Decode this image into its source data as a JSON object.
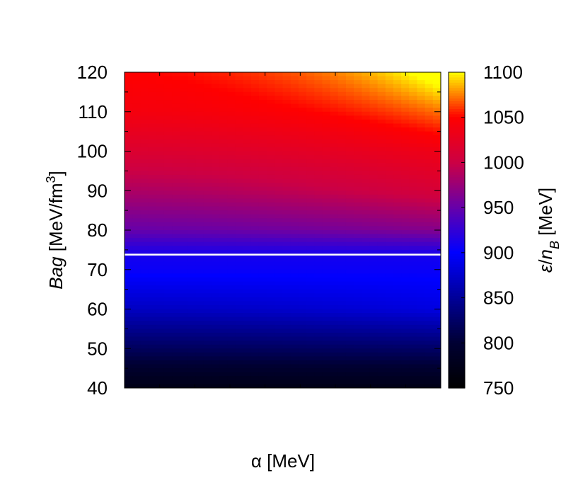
{
  "chart_data": {
    "type": "heatmap",
    "title": "",
    "xlabel": "α [MeV]",
    "ylabel": {
      "italic": "Bag",
      "text": " [MeV/fm",
      "sup": "3",
      "close": "]"
    },
    "colorbar_label": {
      "italic_a": "ε",
      "slash": "/",
      "italic_b": "n",
      "sub": "B",
      "text": " [MeV]"
    },
    "y_ticks": [
      40,
      50,
      60,
      70,
      80,
      90,
      100,
      110,
      120
    ],
    "ylim": [
      40,
      120
    ],
    "x_ticks_labeled": false,
    "colorbar_ticks": [
      750,
      800,
      850,
      900,
      950,
      1000,
      1050,
      1100
    ],
    "colorbar_range": [
      750,
      1100
    ],
    "colormap": [
      {
        "value": 750,
        "color": "#000000"
      },
      {
        "value": 800,
        "color": "#000033"
      },
      {
        "value": 850,
        "color": "#000099"
      },
      {
        "value": 900,
        "color": "#0000ff"
      },
      {
        "value": 950,
        "color": "#6600aa"
      },
      {
        "value": 1000,
        "color": "#cc0044"
      },
      {
        "value": 1050,
        "color": "#ff0000"
      },
      {
        "value": 1100,
        "color": "#ffff00"
      }
    ],
    "field": {
      "y_values": [
        40,
        50,
        60,
        70,
        73.8,
        80,
        90,
        100,
        110,
        120
      ],
      "left_values": [
        770,
        820,
        870,
        905,
        910,
        950,
        985,
        1015,
        1040,
        1050
      ],
      "right_values": [
        770,
        825,
        885,
        905,
        910,
        965,
        1010,
        1035,
        1060,
        1090
      ]
    },
    "boundary_line": {
      "y": 73.8,
      "color": "#ffffff"
    }
  }
}
